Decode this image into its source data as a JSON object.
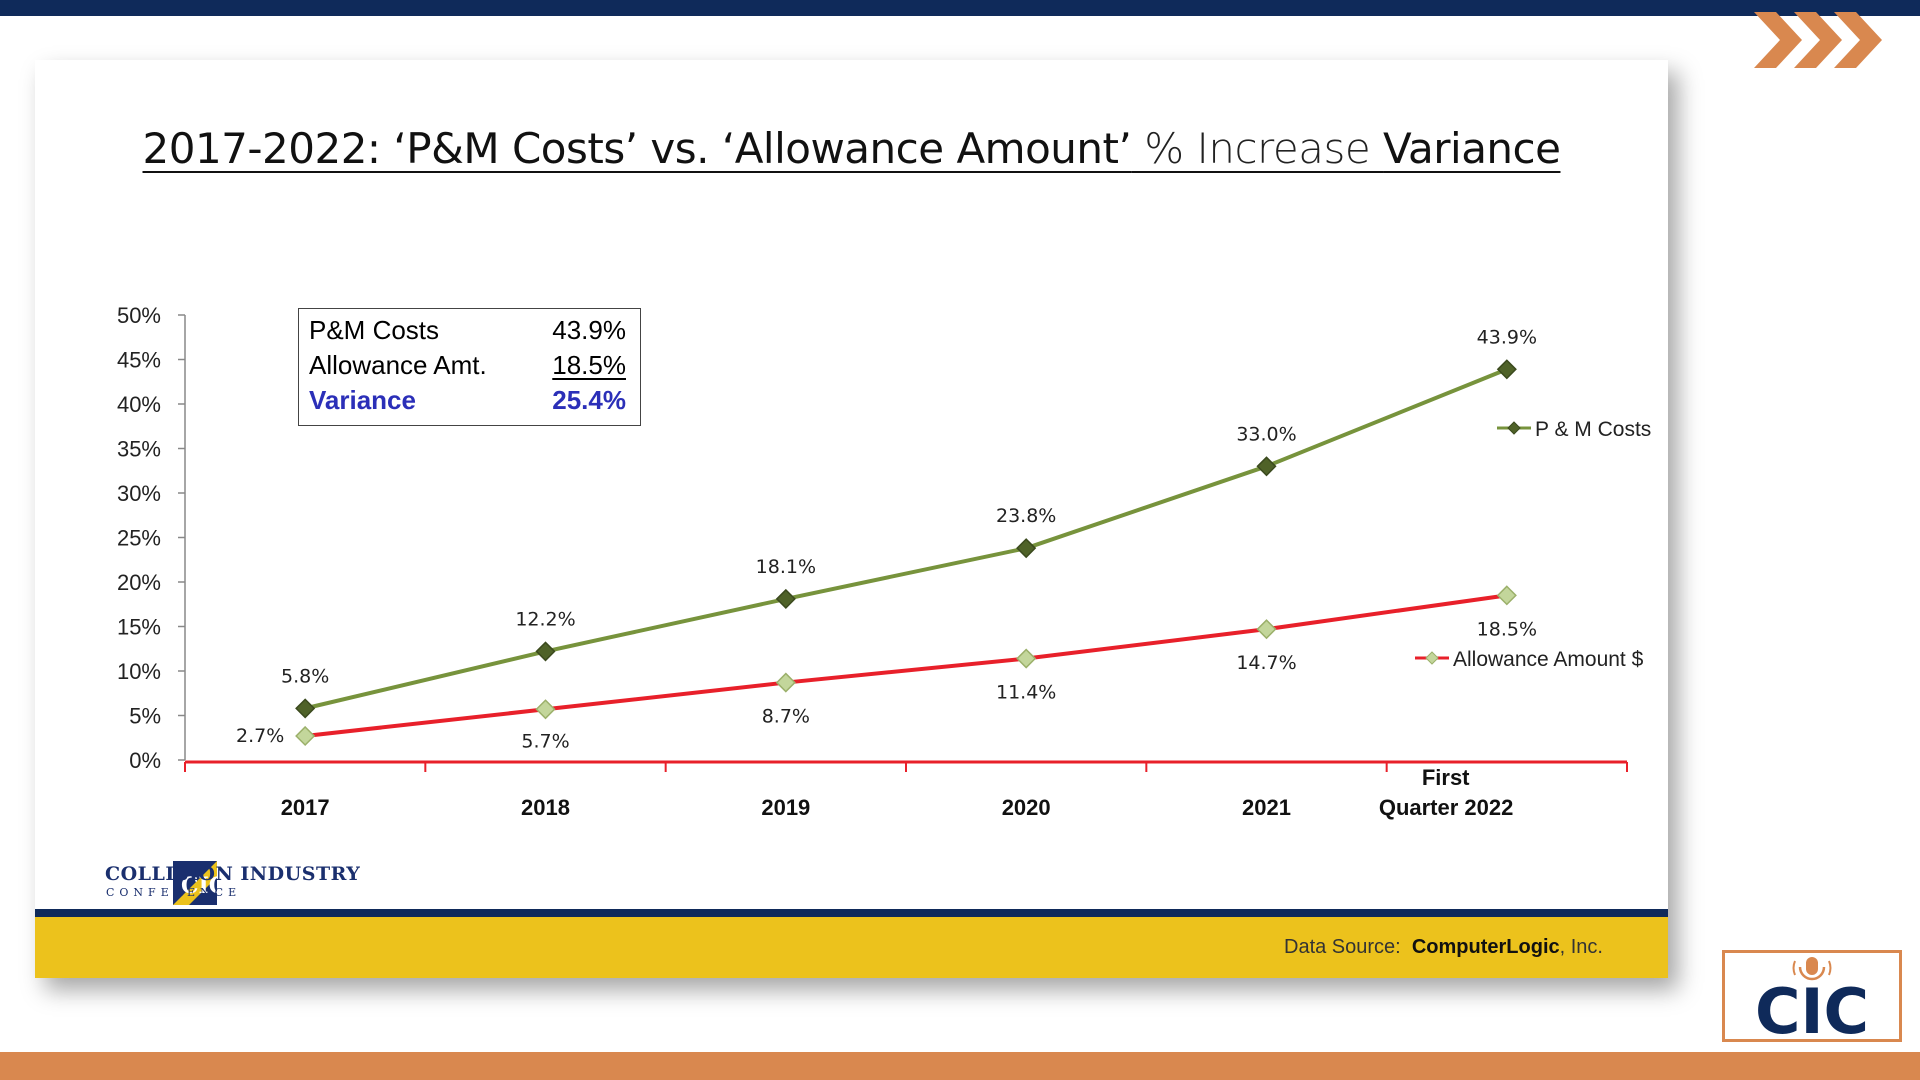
{
  "slide": {
    "title_part1": "2017-2022:   ‘P&M Costs’ vs. ‘Allowance Amount’",
    "title_part2": " % Increase ",
    "title_part3": "Variance"
  },
  "summary_box": {
    "rows": [
      {
        "label": "P&M Costs",
        "value": "43.9%"
      },
      {
        "label": "Allowance Amt.",
        "value": "18.5%"
      },
      {
        "label": "Variance",
        "value": "25.4%"
      }
    ]
  },
  "footer": {
    "org_name": "COLLISION INDUSTRY",
    "org_sub": "CONFERENCE",
    "data_source_label": "Data Source:",
    "data_source_value": "ComputerLogic",
    "data_source_suffix": ", Inc."
  },
  "branding": {
    "logo_text": "CIC",
    "navy": "#0f2a5a",
    "orange": "#d9884f",
    "gold": "#ecc21c"
  },
  "chart_data": {
    "type": "line",
    "categories": [
      "2017",
      "2018",
      "2019",
      "2020",
      "2021",
      "First Quarter  2022"
    ],
    "category_label_lines": [
      [
        "2017"
      ],
      [
        "2018"
      ],
      [
        "2019"
      ],
      [
        "2020"
      ],
      [
        "2021"
      ],
      [
        "First",
        "Quarter  2022"
      ]
    ],
    "series": [
      {
        "name": "P & M Costs",
        "values": [
          5.8,
          12.2,
          18.1,
          23.8,
          33.0,
          43.9
        ],
        "labels": [
          "5.8%",
          "12.2%",
          "18.1%",
          "23.8%",
          "33.0%",
          "43.9%"
        ],
        "color": "#77933c",
        "marker": "#4f6228"
      },
      {
        "name": "Allowance Amount $",
        "values": [
          2.7,
          5.7,
          8.7,
          11.4,
          14.7,
          18.5
        ],
        "labels": [
          "2.7%",
          "5.7%",
          "8.7%",
          "11.4%",
          "14.7%",
          "18.5%"
        ],
        "color": "#e8202a",
        "marker": "#c3d69b"
      }
    ],
    "ylim": [
      0,
      50
    ],
    "yticks": [
      0,
      5,
      10,
      15,
      20,
      25,
      30,
      35,
      40,
      45,
      50
    ],
    "ytick_labels": [
      "0%",
      "5%",
      "10%",
      "15%",
      "20%",
      "25%",
      "30%",
      "35%",
      "40%",
      "45%",
      "50%"
    ],
    "legend_placement": "right",
    "grid": false
  }
}
